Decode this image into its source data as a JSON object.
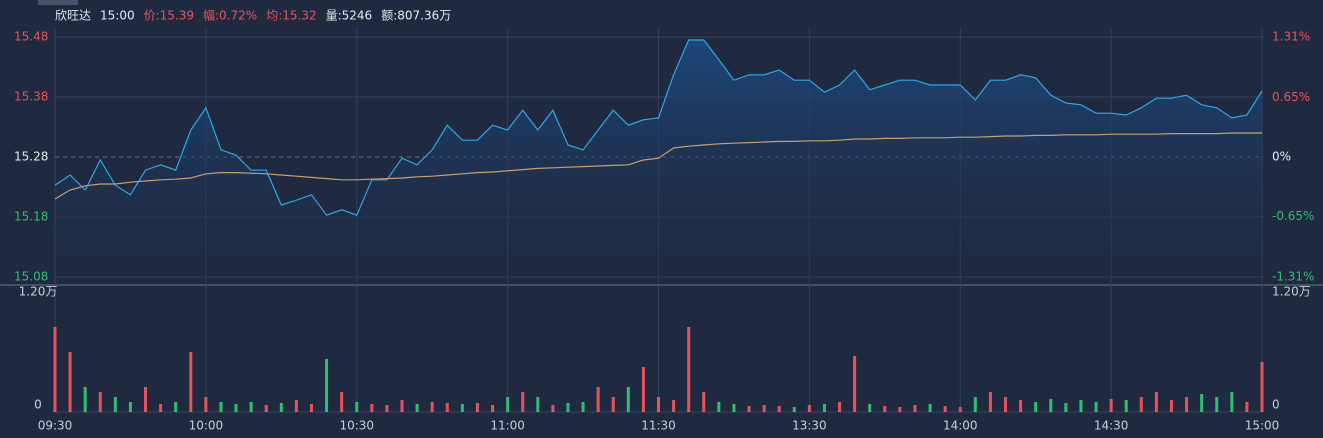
{
  "header": [
    {
      "text": "欣旺达",
      "color": "#e6e9ef"
    },
    {
      "text": "15:00",
      "color": "#e6e9ef"
    },
    {
      "text": "价:15.39",
      "color": "#e8535b"
    },
    {
      "text": "幅:0.72%",
      "color": "#e8535b"
    },
    {
      "text": "均:15.32",
      "color": "#e8535b"
    },
    {
      "text": "量:5246",
      "color": "#e6e9ef"
    },
    {
      "text": "额:807.36万",
      "color": "#e6e9ef"
    }
  ],
  "chart_data": {
    "type": "line",
    "x": [
      0,
      3,
      6,
      9,
      12,
      15,
      18,
      21,
      24,
      27,
      30,
      33,
      36,
      39,
      42,
      45,
      48,
      51,
      54,
      57,
      60,
      63,
      66,
      69,
      72,
      75,
      78,
      81,
      84,
      87,
      90,
      93,
      96,
      99,
      102,
      105,
      108,
      111,
      114,
      117,
      120,
      123,
      126,
      129,
      132,
      135,
      138,
      141,
      144,
      147,
      150,
      153,
      156,
      159,
      162,
      165,
      168,
      171,
      174,
      177,
      180,
      183,
      186,
      189,
      192,
      195,
      198,
      201,
      204,
      207,
      210,
      213,
      216,
      219,
      222,
      225,
      228,
      231,
      234,
      237,
      240
    ],
    "xlim": [
      0,
      240
    ],
    "xticks": [
      {
        "value": 0,
        "label": "09:30"
      },
      {
        "value": 30,
        "label": "10:00"
      },
      {
        "value": 60,
        "label": "10:30"
      },
      {
        "value": 90,
        "label": "11:00"
      },
      {
        "value": 120,
        "label": "11:30"
      },
      {
        "value": 150,
        "label": "13:30"
      },
      {
        "value": 180,
        "label": "14:00"
      },
      {
        "value": 210,
        "label": "14:30"
      },
      {
        "value": 240,
        "label": "15:00"
      }
    ],
    "ylim": [
      15.08,
      15.48
    ],
    "yticks": [
      15.48,
      15.38,
      15.28,
      15.18,
      15.08
    ],
    "y2lim": [
      -1.31,
      1.31
    ],
    "y2ticks": [
      {
        "value": 1.31,
        "label": "1.31%"
      },
      {
        "value": 0.65,
        "label": "0.65%"
      },
      {
        "value": 0,
        "label": "0%"
      },
      {
        "value": -0.65,
        "label": "-0.65%"
      },
      {
        "value": -1.31,
        "label": "-1.31%"
      }
    ],
    "series": [
      {
        "color": "#2aa9e8",
        "values": [
          15.233,
          15.25,
          15.225,
          15.275,
          15.233,
          15.217,
          15.258,
          15.267,
          15.258,
          15.325,
          15.362,
          15.292,
          15.283,
          15.258,
          15.258,
          15.2,
          15.208,
          15.217,
          15.183,
          15.192,
          15.183,
          15.242,
          15.242,
          15.278,
          15.267,
          15.292,
          15.333,
          15.308,
          15.308,
          15.333,
          15.325,
          15.358,
          15.325,
          15.358,
          15.3,
          15.292,
          15.325,
          15.358,
          15.333,
          15.342,
          15.345,
          15.417,
          15.475,
          15.475,
          15.442,
          15.408,
          15.417,
          15.417,
          15.425,
          15.408,
          15.408,
          15.388,
          15.4,
          15.425,
          15.392,
          15.4,
          15.408,
          15.408,
          15.4,
          15.4,
          15.4,
          15.375,
          15.408,
          15.408,
          15.417,
          15.412,
          15.383,
          15.37,
          15.367,
          15.353,
          15.353,
          15.35,
          15.362,
          15.378,
          15.378,
          15.383,
          15.367,
          15.362,
          15.345,
          15.35,
          15.39
        ]
      },
      {
        "color": "#c9a068",
        "values": [
          15.21,
          15.225,
          15.232,
          15.235,
          15.235,
          15.238,
          15.24,
          15.242,
          15.243,
          15.245,
          15.252,
          15.254,
          15.254,
          15.253,
          15.252,
          15.25,
          15.248,
          15.246,
          15.244,
          15.242,
          15.242,
          15.243,
          15.244,
          15.245,
          15.247,
          15.248,
          15.25,
          15.252,
          15.254,
          15.255,
          15.257,
          15.259,
          15.261,
          15.262,
          15.263,
          15.264,
          15.265,
          15.266,
          15.267,
          15.275,
          15.278,
          15.295,
          15.298,
          15.3,
          15.302,
          15.303,
          15.304,
          15.305,
          15.306,
          15.306,
          15.307,
          15.307,
          15.308,
          15.31,
          15.31,
          15.311,
          15.311,
          15.312,
          15.312,
          15.312,
          15.313,
          15.313,
          15.314,
          15.315,
          15.315,
          15.316,
          15.316,
          15.317,
          15.317,
          15.317,
          15.318,
          15.318,
          15.318,
          15.318,
          15.319,
          15.319,
          15.319,
          15.319,
          15.32,
          15.32,
          15.32
        ]
      }
    ],
    "volume": {
      "up_color": "#e8535b",
      "down_color": "#2fbf71",
      "ylim": [
        0,
        12000
      ],
      "yticks": [
        {
          "value": 12000,
          "label": "1.20万"
        },
        0
      ],
      "values": [
        8500,
        6000,
        2500,
        2000,
        1500,
        1000,
        2500,
        800,
        1000,
        6000,
        1500,
        1000,
        800,
        1000,
        700,
        900,
        1200,
        800,
        5300,
        2000,
        1000,
        800,
        700,
        1200,
        800,
        1000,
        900,
        800,
        900,
        700,
        1500,
        2000,
        1500,
        700,
        900,
        1000,
        2500,
        1500,
        2500,
        4500,
        1500,
        1200,
        8500,
        2000,
        1000,
        800,
        600,
        700,
        600,
        500,
        700,
        800,
        1000,
        5600,
        800,
        600,
        500,
        700,
        800,
        600,
        500,
        1500,
        2000,
        1500,
        1200,
        1000,
        1300,
        900,
        1200,
        1000,
        1300,
        1200,
        1500,
        2000,
        1200,
        1500,
        1800,
        1500,
        2000,
        1000,
        5000
      ]
    }
  }
}
